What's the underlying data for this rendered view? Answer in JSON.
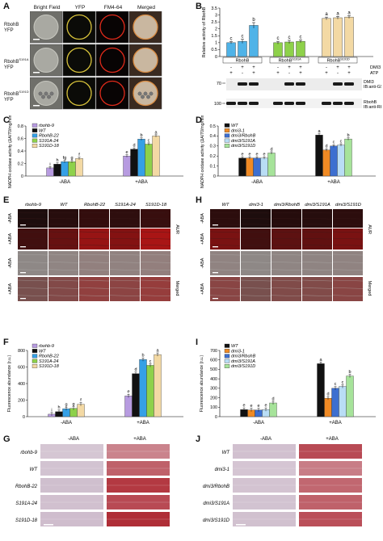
{
  "panels": {
    "A": {
      "letter": "A",
      "columns": [
        "Bright Field",
        "YFP",
        "FM4-64",
        "Merged"
      ],
      "rows": [
        [
          "RbohB",
          "YFP"
        ],
        [
          "RbohB",
          "S191A",
          "YFP"
        ],
        [
          "RbohB",
          "S191D",
          "YFP"
        ]
      ]
    },
    "B": {
      "letter": "B",
      "ylabel": "Relative activity of RbohB",
      "groups": [
        "RbohB",
        "RbohB",
        "RbohB"
      ],
      "group_sup": [
        "",
        "S191A",
        "S191D"
      ],
      "treat_rows": [
        {
          "name": "DMI3",
          "signs": [
            "-",
            "+",
            "+",
            "-",
            "+",
            "+",
            "-",
            "+",
            "+"
          ]
        },
        {
          "name": "ATP",
          "signs": [
            "+",
            "-",
            "+",
            "+",
            "-",
            "+",
            "+",
            "-",
            "+"
          ]
        }
      ],
      "blots": [
        {
          "mw": "70",
          "label": "DMI3",
          "sub": "IB:anti-GST"
        },
        {
          "mw": "100",
          "label": "RbohB",
          "sub": "IB:anti-RbohB"
        }
      ]
    },
    "C": {
      "letter": "C",
      "xgroups": [
        "-ABA",
        "+ABA"
      ]
    },
    "D": {
      "letter": "D",
      "xgroups": [
        "-ABA",
        "+ABA"
      ]
    },
    "E": {
      "letter": "E",
      "cols": [
        "rbohb-9",
        "WT",
        "RbohB-22",
        "S191A-24",
        "S191D-18"
      ],
      "rows": [
        "-ABA",
        "+ABA",
        "-ABA",
        "+ABA"
      ],
      "right1": "AUR",
      "right2": "Merged"
    },
    "H": {
      "letter": "H",
      "cols": [
        "WT",
        "dmi3-1",
        "dmi3/RbohB",
        "dmi3/S191A",
        "dmi3/S191D"
      ],
      "rows": [
        "-ABA",
        "+ABA",
        "-ABA",
        "+ABA"
      ],
      "right1": "AUR",
      "right2": "Merged"
    },
    "F": {
      "letter": "F"
    },
    "I": {
      "letter": "I"
    },
    "G": {
      "letter": "G",
      "cols": [
        "-ABA",
        "+ABA"
      ],
      "rows": [
        "rbohb-9",
        "WT",
        "RbohB-22",
        "S191A-24",
        "S191D-18"
      ]
    },
    "J": {
      "letter": "J",
      "cols": [
        "-ABA",
        "+ABA"
      ],
      "rows": [
        "WT",
        "dmi3-1",
        "dmi3/RbohB",
        "dmi3/S191A",
        "dmi3/S191D"
      ]
    }
  },
  "chart_data": [
    {
      "panel": "B",
      "type": "bar",
      "ylabel": "Relative activity of RbohB",
      "ylim": [
        0,
        3.5
      ],
      "yticks": [
        0,
        0.5,
        1,
        1.5,
        2,
        2.5,
        3,
        3.5
      ],
      "values": [
        1.0,
        1.1,
        2.25,
        1.0,
        1.05,
        1.1,
        2.75,
        2.8,
        2.85
      ],
      "errors": [
        0.08,
        0.15,
        0.2,
        0.1,
        0.12,
        0.1,
        0.1,
        0.1,
        0.1
      ],
      "colors": [
        "#4fb3e8",
        "#4fb3e8",
        "#4fb3e8",
        "#8ed14a",
        "#8ed14a",
        "#8ed14a",
        "#f3d9a4",
        "#f3d9a4",
        "#f3d9a4"
      ],
      "letters": [
        "c",
        "c",
        "b",
        "c",
        "c",
        "c",
        "a",
        "a",
        "a"
      ]
    },
    {
      "panel": "C",
      "type": "bar",
      "ylabel": "NADPH oxidase activity (ΔA/70/mg/min)",
      "ylim": [
        0,
        0.8
      ],
      "yticks": [
        0,
        0.2,
        0.4,
        0.6,
        0.8
      ],
      "categories": [
        "-ABA",
        "+ABA"
      ],
      "series": [
        {
          "name": "rbohb-9",
          "color": "#b79be0",
          "values": [
            0.13,
            0.32
          ],
          "letters": [
            "i",
            "e"
          ]
        },
        {
          "name": "WT",
          "color": "#111111",
          "values": [
            0.19,
            0.43
          ],
          "letters": [
            "h",
            "d"
          ]
        },
        {
          "name": "RbohB-22",
          "color": "#35a0e6",
          "values": [
            0.23,
            0.59
          ],
          "letters": [
            "fg",
            "b"
          ]
        },
        {
          "name": "S191A-24",
          "color": "#8ed14a",
          "values": [
            0.23,
            0.51
          ],
          "letters": [
            "g",
            "c"
          ]
        },
        {
          "name": "S191D-18",
          "color": "#f3d9a4",
          "values": [
            0.28,
            0.64
          ],
          "letters": [
            "f",
            "a"
          ]
        }
      ]
    },
    {
      "panel": "D",
      "type": "bar",
      "ylabel": "NADPH oxidase activity (ΔA/70/mg/min)",
      "ylim": [
        0,
        0.5
      ],
      "yticks": [
        0,
        0.1,
        0.2,
        0.3,
        0.4,
        0.5
      ],
      "categories": [
        "-ABA",
        "+ABA"
      ],
      "series": [
        {
          "name": "WT",
          "color": "#111111",
          "values": [
            0.18,
            0.41
          ],
          "letters": [
            "e",
            "a"
          ]
        },
        {
          "name": "dmi3-1",
          "color": "#f08a24",
          "values": [
            0.18,
            0.26
          ],
          "letters": [
            "e",
            "d"
          ]
        },
        {
          "name": "dmi3/RbohB",
          "color": "#3d6fd0",
          "values": [
            0.18,
            0.3
          ],
          "letters": [
            "e",
            "c"
          ]
        },
        {
          "name": "dmi3/S191A",
          "color": "#b9ddf5",
          "values": [
            0.18,
            0.31
          ],
          "letters": [
            "e",
            "c"
          ]
        },
        {
          "name": "dmi3/S191D",
          "color": "#a6e39a",
          "values": [
            0.23,
            0.37
          ],
          "letters": [
            "d",
            "b"
          ]
        }
      ]
    },
    {
      "panel": "F",
      "type": "bar",
      "ylabel": "Fluorescence abundance (r.u.)",
      "ylim": [
        0,
        800
      ],
      "yticks": [
        0,
        200,
        400,
        600,
        800
      ],
      "categories": [
        "-ABA",
        "+ABA"
      ],
      "series": [
        {
          "name": "rbohb-9",
          "color": "#b79be0",
          "values": [
            30,
            250
          ],
          "letters": [
            "i",
            "e"
          ]
        },
        {
          "name": "WT",
          "color": "#111111",
          "values": [
            60,
            520
          ],
          "letters": [
            "h",
            "d"
          ]
        },
        {
          "name": "RbohB-22",
          "color": "#35a0e6",
          "values": [
            95,
            690
          ],
          "letters": [
            "g",
            "b"
          ]
        },
        {
          "name": "S191A-24",
          "color": "#8ed14a",
          "values": [
            100,
            620
          ],
          "letters": [
            "g",
            "c"
          ]
        },
        {
          "name": "S191D-18",
          "color": "#f3d9a4",
          "values": [
            150,
            750
          ],
          "letters": [
            "f",
            "a"
          ]
        }
      ]
    },
    {
      "panel": "I",
      "type": "bar",
      "ylabel": "Fluorescence abundance (r.u.)",
      "ylim": [
        0,
        700
      ],
      "yticks": [
        0,
        100,
        200,
        300,
        400,
        500,
        600,
        700
      ],
      "categories": [
        "-ABA",
        "+ABA"
      ],
      "series": [
        {
          "name": "WT",
          "color": "#111111",
          "values": [
            75,
            560
          ],
          "letters": [
            "e",
            "a"
          ]
        },
        {
          "name": "dmi3-1",
          "color": "#f08a24",
          "values": [
            70,
            195
          ],
          "letters": [
            "e",
            "d"
          ]
        },
        {
          "name": "dmi3/RbohB",
          "color": "#3d6fd0",
          "values": [
            70,
            300
          ],
          "letters": [
            "e",
            "c"
          ]
        },
        {
          "name": "dmi3/S191A",
          "color": "#b9ddf5",
          "values": [
            75,
            320
          ],
          "letters": [
            "e",
            "c"
          ]
        },
        {
          "name": "dmi3/S191D",
          "color": "#a6e39a",
          "values": [
            145,
            430
          ],
          "letters": [
            "d",
            "b"
          ]
        }
      ]
    }
  ]
}
